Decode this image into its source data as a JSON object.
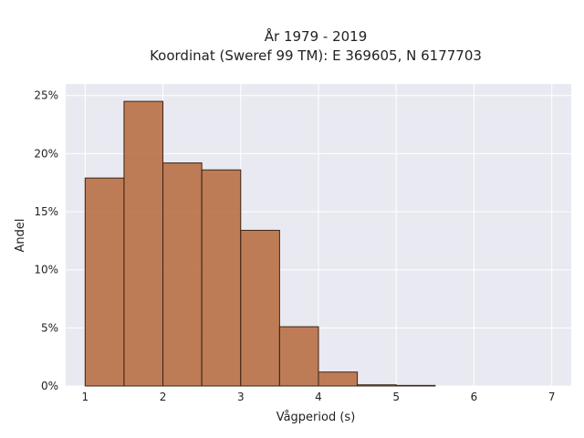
{
  "chart_data": {
    "type": "bar",
    "title_line1": "År 1979 - 2019",
    "title_line2": "Koordinat (Sweref 99 TM): E 369605, N 6177703",
    "xlabel": "Vågperiod (s)",
    "ylabel": "Andel",
    "xlim": [
      0.75,
      7.25
    ],
    "ylim": [
      0,
      0.26
    ],
    "x_ticks": [
      1,
      2,
      3,
      4,
      5,
      6,
      7
    ],
    "y_ticks": [
      0,
      0.05,
      0.1,
      0.15,
      0.2,
      0.25
    ],
    "y_tick_labels": [
      "0%",
      "5%",
      "10%",
      "15%",
      "20%",
      "25%"
    ],
    "bin_edges": [
      1.0,
      1.5,
      2.0,
      2.5,
      3.0,
      3.5,
      4.0,
      4.5,
      5.0,
      5.5
    ],
    "values": [
      0.179,
      0.245,
      0.192,
      0.186,
      0.134,
      0.051,
      0.012,
      0.001,
      0.0005
    ],
    "bar_color": "#b5693b",
    "bar_edge_color": "#3a2414",
    "plot_background": "#e9e9f1",
    "grid": true,
    "legend": "none"
  }
}
